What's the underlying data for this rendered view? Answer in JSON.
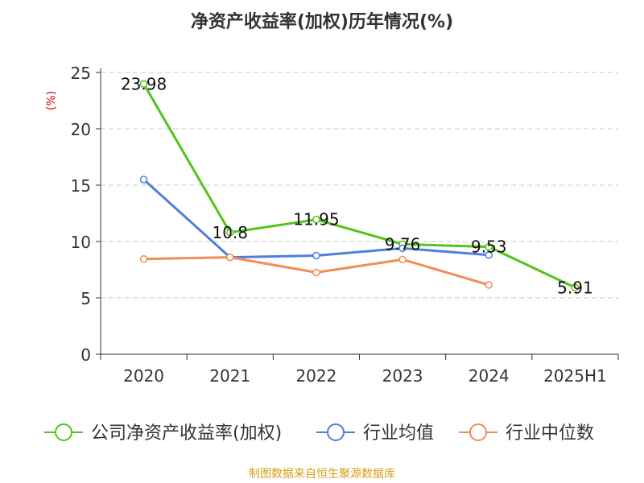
{
  "chart_data": {
    "type": "line",
    "title": "净资产收益率(加权)历年情况(%)",
    "ylabel": "(%)",
    "ylim": [
      0,
      25
    ],
    "yticks": [
      0,
      5,
      10,
      15,
      20,
      25
    ],
    "categories": [
      "2020",
      "2021",
      "2022",
      "2023",
      "2024",
      "2025H1"
    ],
    "grid": true,
    "legend_position": "bottom",
    "series": [
      {
        "name": "公司净资产收益率(加权)",
        "color": "#52c41a",
        "values": [
          23.98,
          10.8,
          11.95,
          9.76,
          9.53,
          5.91
        ],
        "labels": [
          "23.98",
          "10.8",
          "11.95",
          "9.76",
          "9.53",
          "5.91"
        ]
      },
      {
        "name": "行业均值",
        "color": "#4f7fdc",
        "values": [
          15.5,
          8.6,
          8.75,
          9.4,
          8.8,
          null
        ]
      },
      {
        "name": "行业中位数",
        "color": "#f28c5a",
        "values": [
          8.45,
          8.6,
          7.25,
          8.4,
          6.15,
          null
        ]
      }
    ]
  },
  "footer": "制图数据来自恒生聚源数据库",
  "colors": {
    "title": "#333333",
    "ylabel": "#e00000",
    "grid": "#c8c8c8",
    "footer": "#d4a017"
  }
}
